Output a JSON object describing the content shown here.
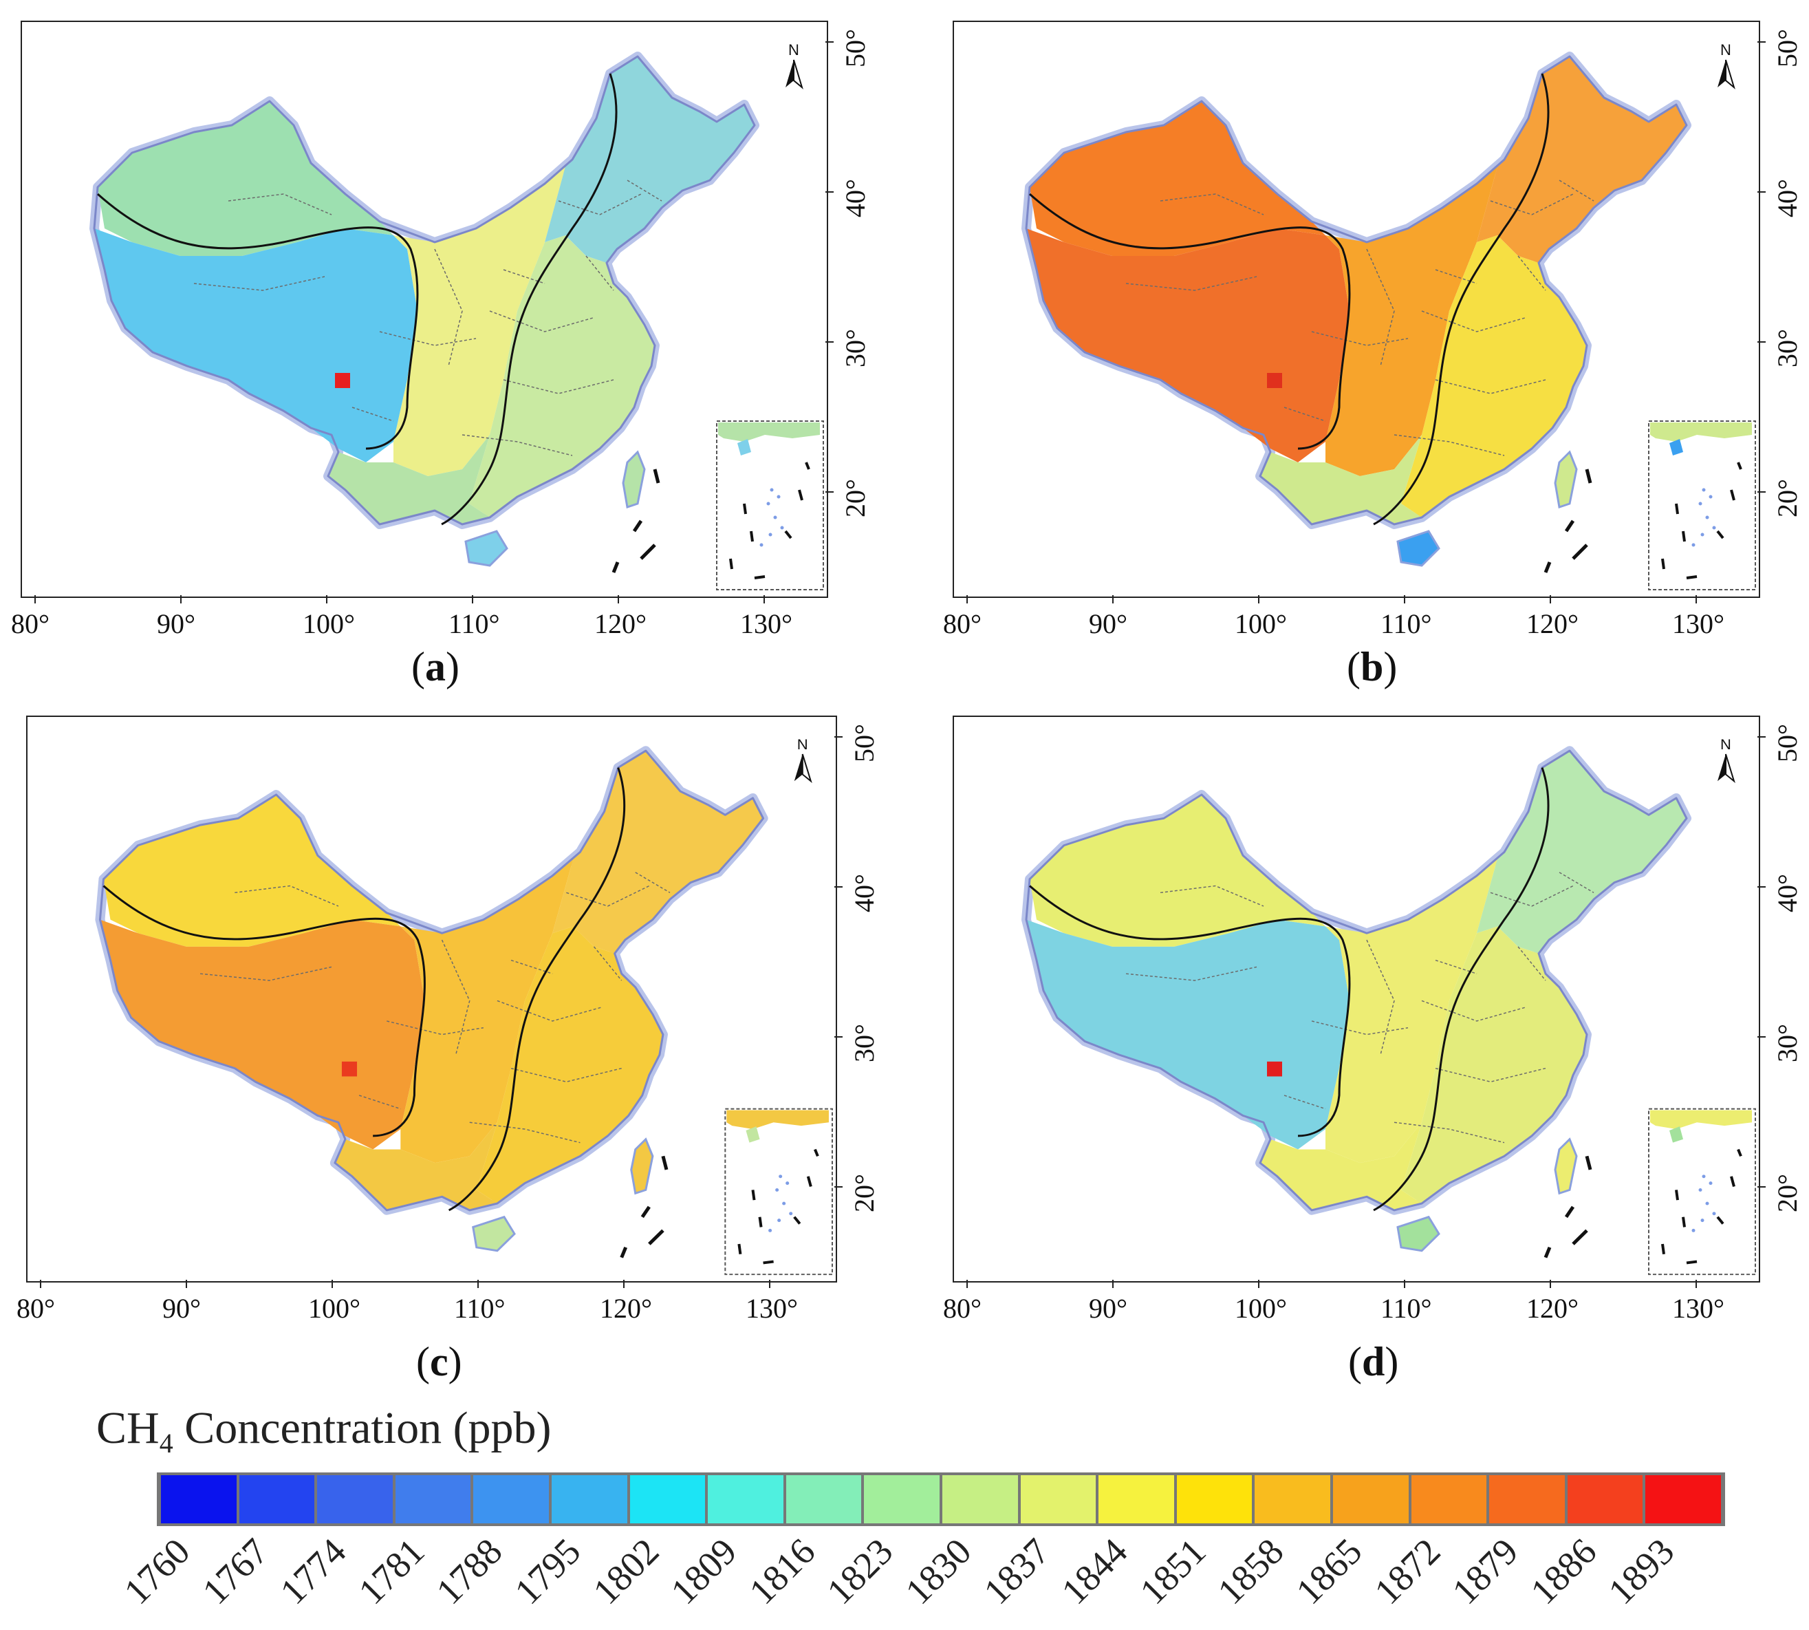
{
  "panels": [
    {
      "id": "a",
      "caption_letter": "a",
      "colors": {
        "west": "#9de0b0",
        "tibet": "#5fc8ef",
        "north": "#ecef8a",
        "northeast": "#8fd6dc",
        "east": "#c9eaa2",
        "south": "#b5e3a8",
        "hainan": "#7ed0ea",
        "hotspot": "#e81f1f"
      }
    },
    {
      "id": "b",
      "caption_letter": "b",
      "colors": {
        "west": "#f57e26",
        "tibet": "#f0702a",
        "north": "#f7a42c",
        "northeast": "#f6a13a",
        "east": "#f6df43",
        "south": "#cfe98e",
        "hainan": "#3aa0f0",
        "hotspot": "#e0301d"
      }
    },
    {
      "id": "c",
      "caption_letter": "c",
      "colors": {
        "west": "#f8d83c",
        "tibet": "#f49c33",
        "north": "#f7c23a",
        "northeast": "#f5c94b",
        "east": "#f6cc3a",
        "south": "#f3c843",
        "hainan": "#c2e6a0",
        "hotspot": "#ea3b1f"
      }
    },
    {
      "id": "d",
      "caption_letter": "d",
      "colors": {
        "west": "#e7ee72",
        "tibet": "#7ed3e2",
        "north": "#eded74",
        "northeast": "#b8e8b0",
        "east": "#e3ec7c",
        "south": "#eced70",
        "hainan": "#a3e19c",
        "hotspot": "#e31e1e"
      }
    }
  ],
  "x_ticks": [
    "80°",
    "90°",
    "100°",
    "110°",
    "120°",
    "130°"
  ],
  "y_ticks": [
    "50°",
    "40°",
    "30°",
    "20°"
  ],
  "north_label": "N",
  "legend": {
    "title_prefix": "CH",
    "title_subscript": "4",
    "title_suffix": " Concentration (ppb)",
    "labels": [
      "1760",
      "1767",
      "1774",
      "1781",
      "1788",
      "1795",
      "1802",
      "1809",
      "1816",
      "1823",
      "1830",
      "1837",
      "1844",
      "1851",
      "1858",
      "1865",
      "1872",
      "1879",
      "1886",
      "1893"
    ],
    "colors": [
      "#0a13ee",
      "#2344f0",
      "#3863ec",
      "#407ded",
      "#3d93f0",
      "#38b3f0",
      "#1ce4f5",
      "#4ff0df",
      "#83eeb8",
      "#a2ee9b",
      "#c6ef84",
      "#e3f26c",
      "#f6f23e",
      "#fee20a",
      "#f9bc1e",
      "#f7a21c",
      "#f88a1d",
      "#f66a1e",
      "#f4401e",
      "#f51214"
    ]
  }
}
